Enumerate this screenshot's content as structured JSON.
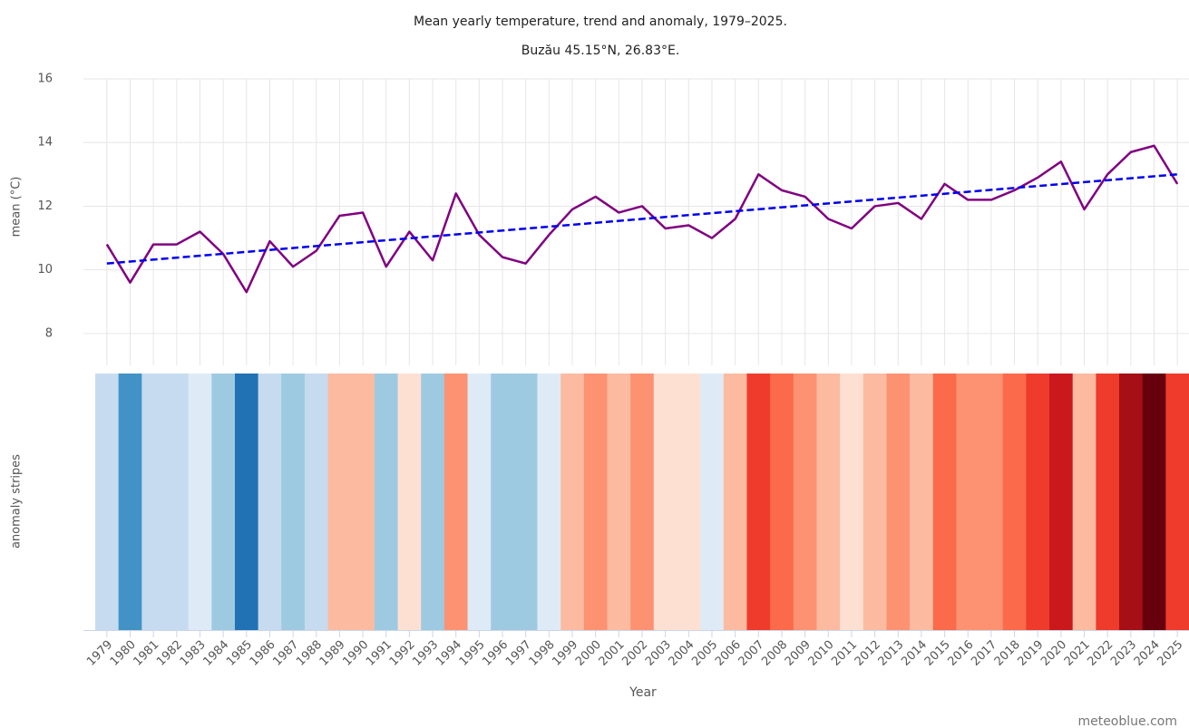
{
  "chart_data": {
    "type": "line",
    "title": "Mean yearly temperature, trend and anomaly, 1979–2025.",
    "subtitle": "Buzău 45.15°N, 26.83°E.",
    "ylabel": "mean (°C)",
    "stripes_label": "anomaly stripes",
    "xlabel": "Year",
    "credit": "meteoblue.com",
    "x": [
      1979,
      1980,
      1981,
      1982,
      1983,
      1984,
      1985,
      1986,
      1987,
      1988,
      1989,
      1990,
      1991,
      1992,
      1993,
      1994,
      1995,
      1996,
      1997,
      1998,
      1999,
      2000,
      2001,
      2002,
      2003,
      2004,
      2005,
      2006,
      2007,
      2008,
      2009,
      2010,
      2011,
      2012,
      2013,
      2014,
      2015,
      2016,
      2017,
      2018,
      2019,
      2020,
      2021,
      2022,
      2023,
      2024,
      2025
    ],
    "xlim": [
      1978.5,
      2025.5
    ],
    "ylim": [
      7,
      16
    ],
    "yticks": [
      8,
      10,
      12,
      14,
      16
    ],
    "grid": true,
    "series": [
      {
        "color": "#800080",
        "values": [
          10.8,
          9.6,
          10.8,
          10.8,
          11.2,
          10.5,
          9.3,
          10.9,
          10.1,
          10.6,
          11.7,
          11.8,
          10.1,
          11.2,
          10.3,
          12.4,
          11.1,
          10.4,
          10.2,
          11.1,
          11.9,
          12.3,
          11.8,
          12.0,
          11.3,
          11.4,
          11.0,
          11.6,
          13.0,
          12.5,
          12.3,
          11.6,
          11.3,
          12.0,
          12.1,
          11.6,
          12.7,
          12.2,
          12.2,
          12.5,
          12.9,
          13.4,
          11.9,
          13.0,
          13.7,
          13.9,
          12.7
        ]
      }
    ],
    "trend": {
      "x": [
        1979,
        2025
      ],
      "values": [
        10.2,
        13.0
      ],
      "color": "#0000ee",
      "dashed": true
    },
    "stripe_colors": [
      "#c6dbef",
      "#4292c6",
      "#c6dbef",
      "#c6dbef",
      "#deebf7",
      "#9ecae1",
      "#2171b5",
      "#c6dbef",
      "#9ecae1",
      "#c6dbef",
      "#fcbba1",
      "#fcbba1",
      "#9ecae1",
      "#fee0d2",
      "#9ecae1",
      "#fc9272",
      "#deebf7",
      "#9ecae1",
      "#9ecae1",
      "#deebf7",
      "#fcbba1",
      "#fc9272",
      "#fcbba1",
      "#fc9272",
      "#fee0d2",
      "#fee0d2",
      "#deebf7",
      "#fcbba1",
      "#ef3b2c",
      "#fb6a4a",
      "#fc9272",
      "#fcbba1",
      "#fee0d2",
      "#fcbba1",
      "#fc9272",
      "#fcbba1",
      "#fb6a4a",
      "#fc9272",
      "#fc9272",
      "#fb6a4a",
      "#ef3b2c",
      "#cb181d",
      "#fcbba1",
      "#ef3b2c",
      "#a50f15",
      "#67000d",
      "#ef3b2c"
    ]
  }
}
